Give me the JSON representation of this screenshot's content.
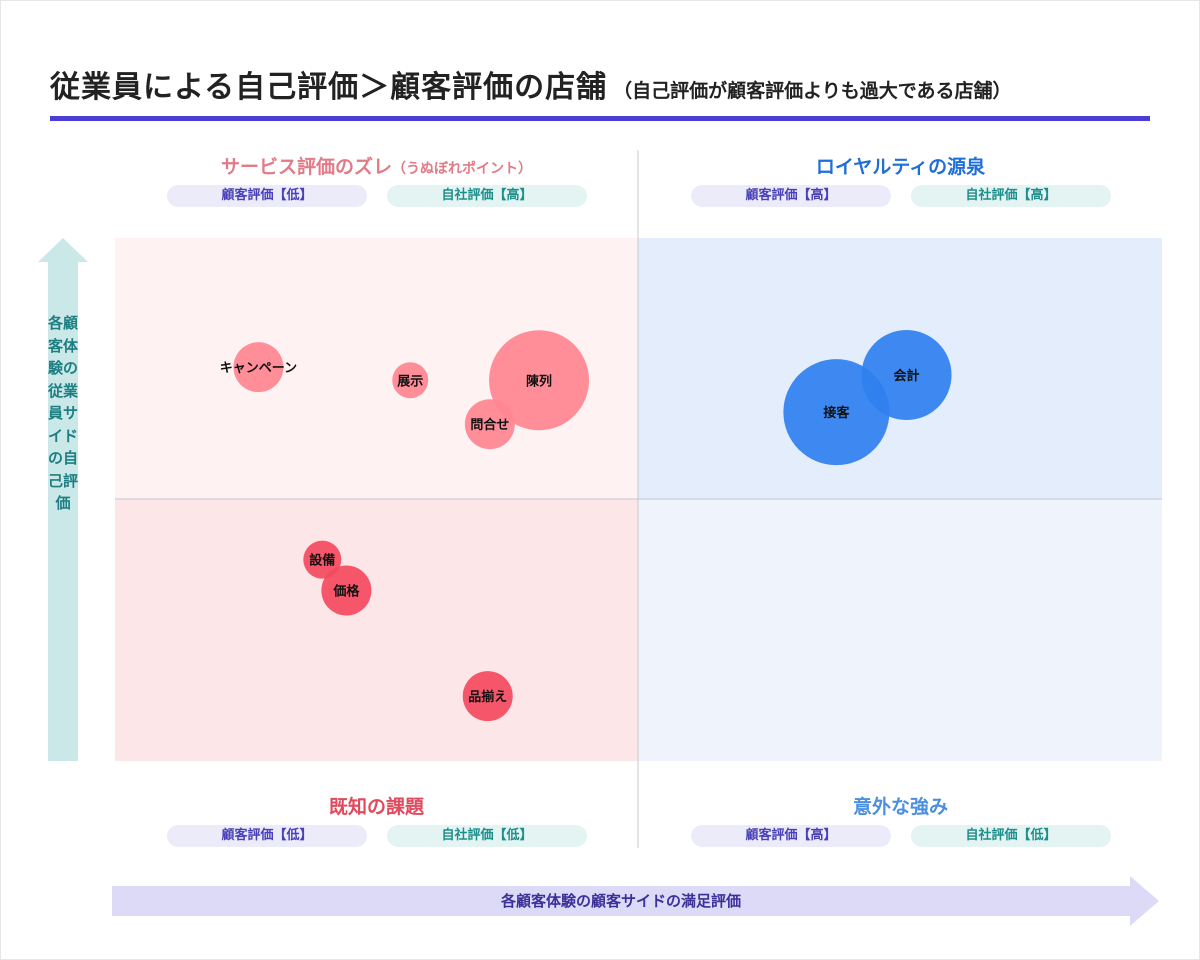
{
  "header": {
    "title": "従業員による自己評価＞顧客評価の店舗",
    "subtitle": "（自己評価が顧客評価よりも過大である店舗）"
  },
  "quadrants": {
    "top_left": {
      "title": "サービス評価のズレ",
      "note": "（うぬぼれポイント）",
      "tag_customer": "顧客評価【低】",
      "tag_self": "自社評価【高】",
      "title_color": "#e07b87",
      "bg_color": "#fff2f3"
    },
    "top_right": {
      "title": "ロイヤルティの源泉",
      "tag_customer": "顧客評価【高】",
      "tag_self": "自社評価【高】",
      "title_color": "#1f6fd6",
      "bg_color": "#e3edfb"
    },
    "bottom_left": {
      "title": "既知の課題",
      "tag_customer": "顧客評価【低】",
      "tag_self": "自社評価【低】",
      "title_color": "#e04a5c",
      "bg_color": "#fde6e8"
    },
    "bottom_right": {
      "title": "意外な強み",
      "tag_customer": "顧客評価【高】",
      "tag_self": "自社評価【低】",
      "title_color": "#4a8fe0",
      "bg_color": "#eef3fc"
    }
  },
  "chart_data": {
    "type": "scatter",
    "xlabel": "各顧客体験の顧客サイドの満足評価",
    "ylabel": "各顧客体験の従業員サイドの自己評価",
    "xlim": [
      0,
      100
    ],
    "ylim": [
      0,
      100
    ],
    "midpoint": [
      50,
      50
    ],
    "grid": false,
    "points": [
      {
        "label": "キャンペーン",
        "x": 13.7,
        "y": 75.3,
        "size": 25,
        "color": "#ff8591"
      },
      {
        "label": "展示",
        "x": 28.2,
        "y": 72.8,
        "size": 18,
        "color": "#ff8591"
      },
      {
        "label": "陳列",
        "x": 40.5,
        "y": 72.8,
        "size": 50,
        "color": "#ff8591"
      },
      {
        "label": "問合せ",
        "x": 35.8,
        "y": 64.4,
        "size": 25,
        "color": "#ff8591"
      },
      {
        "label": "設備",
        "x": 19.8,
        "y": 38.5,
        "size": 19,
        "color": "#f54a5e"
      },
      {
        "label": "価格",
        "x": 22.1,
        "y": 32.6,
        "size": 25,
        "color": "#f54a5e"
      },
      {
        "label": "品揃え",
        "x": 35.6,
        "y": 12.4,
        "size": 25,
        "color": "#f54a5e"
      },
      {
        "label": "接客",
        "x": 68.9,
        "y": 66.7,
        "size": 53,
        "color": "#2f7ff0"
      },
      {
        "label": "会計",
        "x": 75.6,
        "y": 73.8,
        "size": 45,
        "color": "#2f7ff0"
      }
    ]
  }
}
